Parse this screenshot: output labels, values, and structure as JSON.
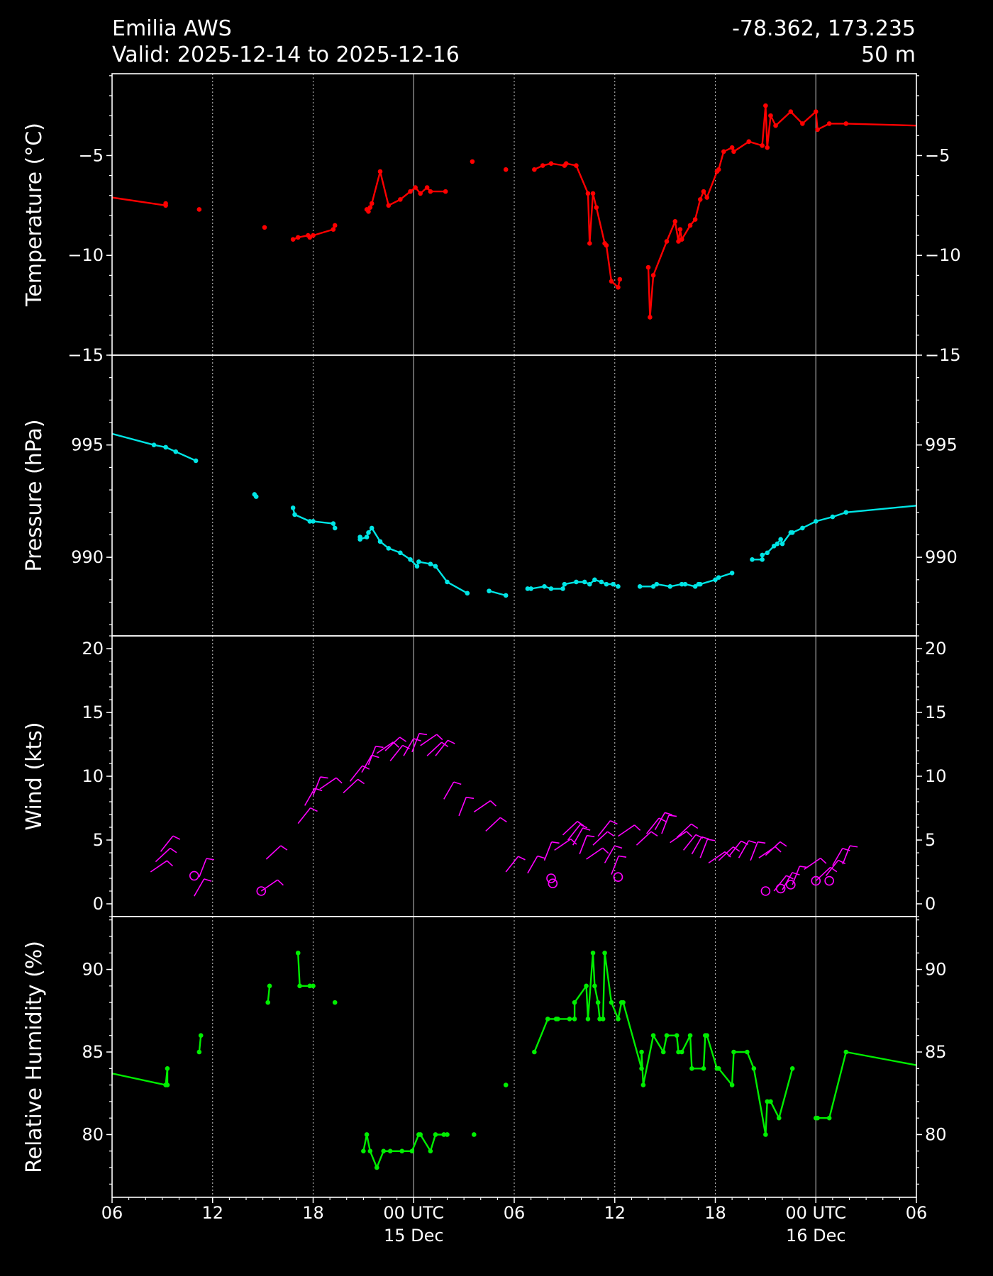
{
  "header": {
    "station": "Emilia AWS",
    "valid": "Valid: 2025-12-14 to 2025-12-16",
    "coords": "-78.362, 173.235",
    "elevation": "50 m"
  },
  "chart_data": [
    {
      "type": "line",
      "ylabel": "Temperature ($^\\circ$C)",
      "color": "#ff0000",
      "ylim": [
        -15,
        -0.9
      ],
      "yticks": [
        -5,
        -10,
        -15
      ],
      "ytick_labels": [
        "−5",
        "−10",
        "−15"
      ],
      "x": [
        6.0,
        9.2,
        9.2,
        11.2,
        15.1,
        16.8,
        17.1,
        17.7,
        17.8,
        18.0,
        19.2,
        19.3,
        21.2,
        21.3,
        21.4,
        21.5,
        22.0,
        22.5,
        23.2,
        23.8,
        24.1,
        24.4,
        24.8,
        25.0,
        25.9,
        27.5,
        29.5,
        31.2,
        31.7,
        32.2,
        33.0,
        33.1,
        33.7,
        34.4,
        34.5,
        34.7,
        34.9,
        35.4,
        35.5,
        35.8,
        36.2,
        36.3,
        38.0,
        38.1,
        38.3,
        39.1,
        39.6,
        39.8,
        39.9,
        40.0,
        40.5,
        40.8,
        41.1,
        41.3,
        41.5,
        42.1,
        42.2,
        42.5,
        43.0,
        43.1,
        44.0,
        44.8,
        45.0,
        45.1,
        45.3,
        45.6,
        46.5,
        47.2,
        48.0,
        48.1,
        48.8,
        49.8,
        54.0
      ],
      "y": [
        -7.1,
        -7.5,
        -7.4,
        -7.7,
        -8.6,
        -9.2,
        -9.1,
        -9.0,
        -9.1,
        -9.0,
        -8.7,
        -8.5,
        -7.7,
        -7.8,
        -7.6,
        -7.4,
        -5.8,
        -7.5,
        -7.2,
        -6.8,
        -6.6,
        -6.9,
        -6.6,
        -6.8,
        -6.8,
        -5.3,
        -5.7,
        -5.7,
        -5.5,
        -5.4,
        -5.5,
        -5.4,
        -5.5,
        -6.9,
        -9.4,
        -6.9,
        -7.6,
        -9.4,
        -9.5,
        -11.3,
        -11.6,
        -11.2,
        -10.6,
        -13.1,
        -11.0,
        -9.3,
        -8.3,
        -9.3,
        -8.7,
        -9.2,
        -8.5,
        -8.2,
        -7.2,
        -6.8,
        -7.1,
        -5.8,
        -5.7,
        -4.8,
        -4.6,
        -4.8,
        -4.3,
        -4.5,
        -2.5,
        -4.6,
        -3.0,
        -3.5,
        -2.8,
        -3.4,
        -2.8,
        -3.7,
        -3.4,
        -3.4,
        -3.5
      ]
    },
    {
      "type": "line",
      "ylabel": "Pressure (hPa)",
      "color": "#00e5e5",
      "ylim": [
        986.5,
        999
      ],
      "yticks": [
        995,
        990
      ],
      "ytick_labels": [
        "995",
        "990"
      ],
      "x": [
        6.0,
        8.5,
        9.2,
        9.8,
        11.0,
        14.5,
        14.6,
        16.8,
        16.9,
        17.8,
        18.0,
        19.2,
        19.3,
        20.8,
        20.8,
        21.2,
        21.3,
        21.5,
        22.0,
        22.5,
        23.2,
        23.8,
        24.2,
        24.3,
        25.0,
        25.3,
        26.0,
        27.2,
        28.5,
        29.5,
        30.8,
        31.0,
        31.8,
        32.2,
        32.9,
        33.0,
        33.7,
        34.2,
        34.5,
        34.8,
        35.2,
        35.5,
        35.9,
        36.2,
        37.5,
        38.3,
        38.5,
        39.3,
        40.0,
        40.2,
        40.8,
        41.0,
        41.1,
        42.0,
        42.2,
        43.0,
        44.2,
        44.8,
        44.8,
        45.1,
        45.5,
        45.7,
        45.9,
        46.0,
        46.5,
        46.6,
        47.2,
        48.0,
        49.0,
        49.8,
        54.0
      ],
      "y": [
        995.5,
        995.0,
        994.9,
        994.7,
        994.3,
        992.8,
        992.7,
        992.2,
        991.9,
        991.6,
        991.6,
        991.5,
        991.3,
        990.9,
        990.8,
        990.9,
        991.1,
        991.3,
        990.7,
        990.4,
        990.2,
        989.9,
        989.6,
        989.8,
        989.7,
        989.6,
        988.9,
        988.4,
        988.5,
        988.3,
        988.6,
        988.6,
        988.7,
        988.6,
        988.6,
        988.8,
        988.9,
        988.9,
        988.8,
        989.0,
        988.9,
        988.8,
        988.8,
        988.7,
        988.7,
        988.7,
        988.8,
        988.7,
        988.8,
        988.8,
        988.7,
        988.8,
        988.8,
        989.0,
        989.1,
        989.3,
        989.9,
        989.9,
        990.1,
        990.2,
        990.5,
        990.6,
        990.8,
        990.6,
        991.1,
        991.1,
        991.3,
        991.6,
        991.8,
        992.0,
        992.3
      ]
    },
    {
      "type": "scatter",
      "ylabel": "Wind (kts)",
      "color": "#ff00ff",
      "ylim": [
        -1,
        21
      ],
      "yticks": [
        20,
        15,
        10,
        5,
        0
      ],
      "ytick_labels": [
        "20",
        "15",
        "10",
        "5",
        "0"
      ],
      "x": [
        8.3,
        8.6,
        8.9,
        10.9,
        11.2,
        14.9,
        15.2,
        17.1,
        17.5,
        18.0,
        18.4,
        19.8,
        20.2,
        20.9,
        21.3,
        21.8,
        22.3,
        22.6,
        23.4,
        23.9,
        24.4,
        24.8,
        25.3,
        25.8,
        26.7,
        27.6,
        28.3,
        29.5,
        30.8,
        31.8,
        32.4,
        32.9,
        33.2,
        33.5,
        33.9,
        34.3,
        34.7,
        35.0,
        35.4,
        35.8,
        36.2,
        37.3,
        37.9,
        38.4,
        38.8,
        39.3,
        39.7,
        40.1,
        40.6,
        41.1,
        41.6,
        42.2,
        42.8,
        43.4,
        44.1,
        44.6,
        45.0,
        45.5,
        46.0,
        46.6,
        47.3,
        48.0,
        48.6,
        49.0,
        49.6
      ],
      "y": [
        2.5,
        3.3,
        4.1,
        0.6,
        2.1,
        1.0,
        3.5,
        6.3,
        7.7,
        8.5,
        9.0,
        8.7,
        9.6,
        10.3,
        10.9,
        11.8,
        12.0,
        11.2,
        11.6,
        11.9,
        12.4,
        11.6,
        11.6,
        8.2,
        6.9,
        7.2,
        5.7,
        2.5,
        2.4,
        3.4,
        4.2,
        5.4,
        5.0,
        4.6,
        3.9,
        3.5,
        4.6,
        5.3,
        3.2,
        2.3,
        5.3,
        4.6,
        5.5,
        5.8,
        5.5,
        4.8,
        5.2,
        4.2,
        3.9,
        3.6,
        3.2,
        3.4,
        3.7,
        3.6,
        3.4,
        3.6,
        3.8,
        1.0,
        1.1,
        1.5,
        2.7,
        1.8,
        2.2,
        3.0,
        3.1
      ],
      "calm": [
        {
          "x": 10.9,
          "y": 2.2
        },
        {
          "x": 14.9,
          "y": 1.0
        },
        {
          "x": 32.2,
          "y": 2.0
        },
        {
          "x": 32.3,
          "y": 1.6
        },
        {
          "x": 36.2,
          "y": 2.1
        },
        {
          "x": 45.0,
          "y": 1.0
        },
        {
          "x": 45.9,
          "y": 1.2
        },
        {
          "x": 46.5,
          "y": 1.5
        },
        {
          "x": 48.0,
          "y": 1.8
        },
        {
          "x": 48.8,
          "y": 1.8
        }
      ]
    },
    {
      "type": "line",
      "ylabel": "Relative Humidity (%)",
      "color": "#00ee00",
      "ylim": [
        76.2,
        93.2
      ],
      "yticks": [
        90,
        85,
        80
      ],
      "ytick_labels": [
        "90",
        "85",
        "80"
      ],
      "x": [
        6.0,
        9.2,
        9.3,
        9.3,
        11.2,
        11.3,
        15.3,
        15.4,
        17.1,
        17.2,
        17.8,
        18.0,
        19.3,
        21.0,
        21.2,
        21.4,
        21.8,
        22.2,
        22.6,
        23.3,
        23.9,
        24.3,
        24.4,
        25.0,
        25.3,
        25.8,
        26.0,
        27.6,
        29.5,
        31.2,
        32.0,
        32.5,
        32.6,
        33.3,
        33.6,
        33.6,
        34.3,
        34.4,
        34.7,
        34.8,
        35.0,
        35.1,
        35.3,
        35.4,
        35.8,
        36.2,
        36.4,
        36.5,
        37.6,
        37.6,
        37.7,
        38.3,
        38.9,
        39.1,
        39.7,
        39.8,
        40.0,
        40.5,
        40.6,
        41.3,
        41.4,
        41.5,
        42.1,
        42.2,
        43.0,
        43.1,
        43.9,
        44.3,
        45.0,
        45.1,
        45.3,
        45.8,
        46.6,
        48.0,
        48.1,
        48.8,
        49.8,
        54.0
      ],
      "y": [
        83.7,
        83.0,
        84.0,
        83.0,
        85.0,
        86.0,
        88.0,
        89.0,
        91.0,
        89.0,
        89.0,
        89.0,
        88.0,
        79.0,
        80.0,
        79.0,
        78.0,
        79.0,
        79.0,
        79.0,
        79.0,
        80.0,
        80.0,
        79.0,
        80.0,
        80.0,
        80.0,
        80.0,
        83.0,
        85.0,
        87.0,
        87.0,
        87.0,
        87.0,
        87.0,
        88.0,
        89.0,
        87.0,
        91.0,
        89.0,
        88.0,
        87.0,
        87.0,
        91.0,
        88.0,
        87.0,
        88.0,
        88.0,
        84.0,
        85.0,
        83.0,
        86.0,
        85.0,
        86.0,
        86.0,
        85.0,
        85.0,
        86.0,
        84.0,
        84.0,
        86.0,
        86.0,
        84.0,
        84.0,
        83.0,
        85.0,
        85.0,
        84.0,
        80.0,
        82.0,
        82.0,
        81.0,
        84.0,
        81.0,
        81.0,
        81.0,
        85.0,
        84.2
      ]
    }
  ],
  "xaxis": {
    "range_hours": [
      6,
      54
    ],
    "ticks": [
      {
        "h": 6,
        "line1": "06",
        "line2": ""
      },
      {
        "h": 12,
        "line1": "12",
        "line2": ""
      },
      {
        "h": 18,
        "line1": "18",
        "line2": ""
      },
      {
        "h": 24,
        "line1": "00 UTC",
        "line2": "15 Dec"
      },
      {
        "h": 30,
        "line1": "06",
        "line2": ""
      },
      {
        "h": 36,
        "line1": "12",
        "line2": ""
      },
      {
        "h": 42,
        "line1": "18",
        "line2": ""
      },
      {
        "h": 48,
        "line1": "00 UTC",
        "line2": "16 Dec"
      },
      {
        "h": 54,
        "line1": "06",
        "line2": ""
      }
    ],
    "midnight_hours": [
      24,
      48
    ]
  }
}
